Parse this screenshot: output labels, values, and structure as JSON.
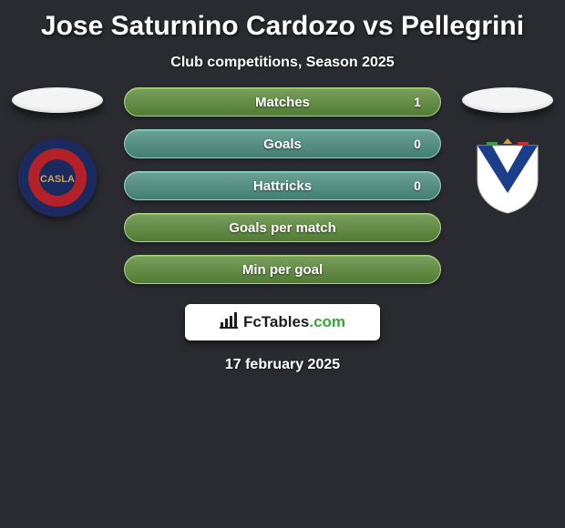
{
  "title": "Jose Saturnino Cardozo vs Pellegrini",
  "subtitle": "Club competitions, Season 2025",
  "date": "17 february 2025",
  "brand": {
    "label": "FcTables",
    "suffix": ".com"
  },
  "palette": {
    "background": "#2a2b30",
    "text": "#ffffff",
    "row_bg_green": "#5b8a3a",
    "row_border_green": "#a7d77a",
    "row_bg_teal": "#4a8d7e",
    "row_border_teal": "#8fd3c1"
  },
  "clubs": {
    "left": {
      "name": "san-lorenzo",
      "colors": {
        "outer": "#1a2a5e",
        "inner": "#b32028"
      }
    },
    "right": {
      "name": "velez",
      "colors": {
        "outer": "#ffffff",
        "inner": "#1c3d8a",
        "chevron": "#e7e7e7"
      }
    }
  },
  "rows": [
    {
      "label": "Matches",
      "left": "",
      "right": "1",
      "variant": "green"
    },
    {
      "label": "Goals",
      "left": "",
      "right": "0",
      "variant": "teal"
    },
    {
      "label": "Hattricks",
      "left": "",
      "right": "0",
      "variant": "teal"
    },
    {
      "label": "Goals per match",
      "left": "",
      "right": "",
      "variant": "green"
    },
    {
      "label": "Min per goal",
      "left": "",
      "right": "",
      "variant": "green"
    }
  ]
}
